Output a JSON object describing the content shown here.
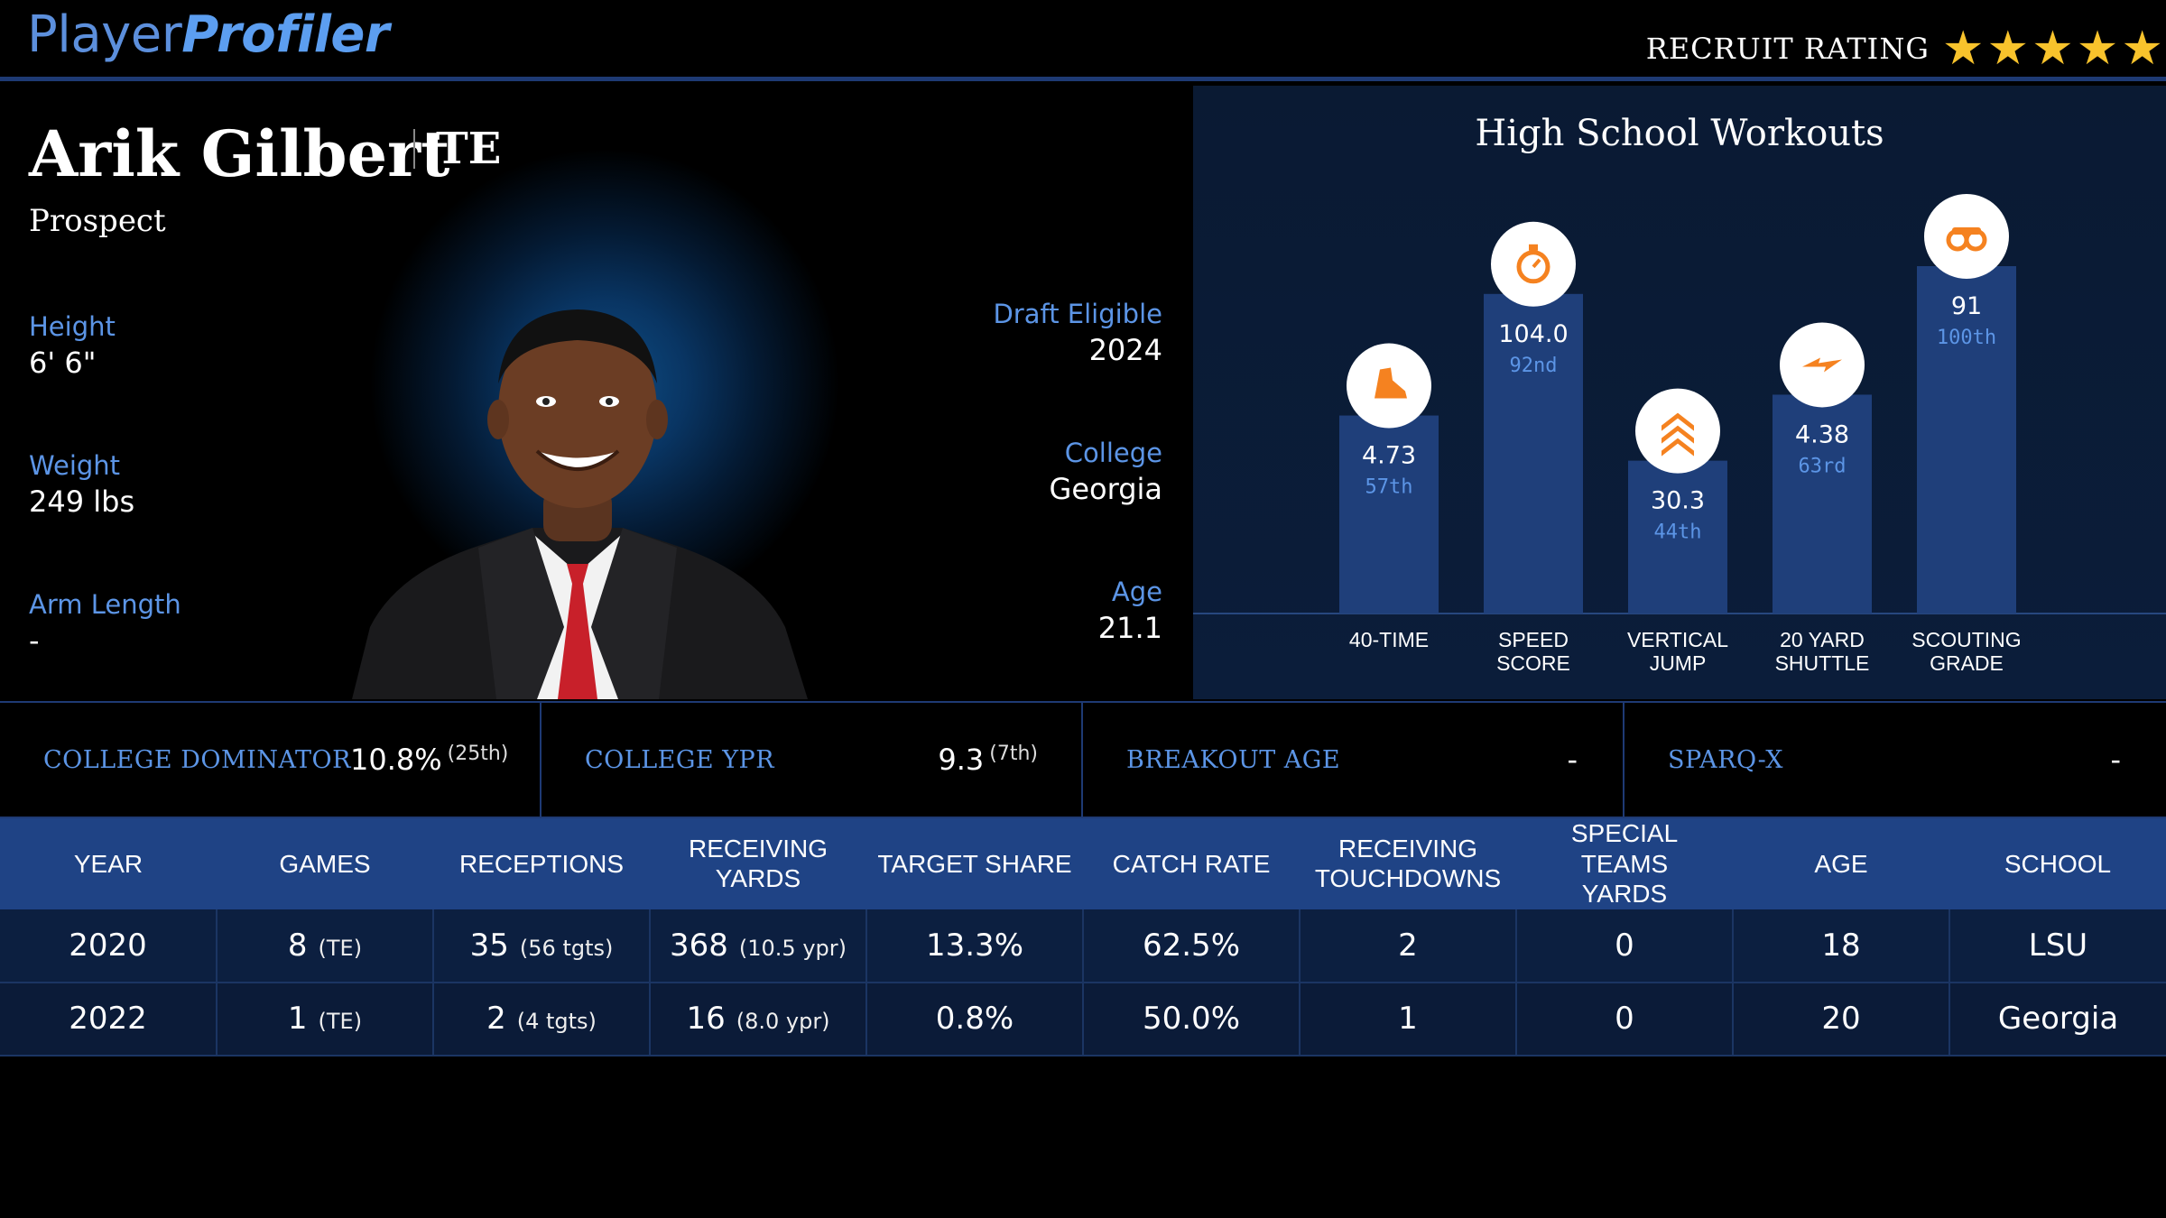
{
  "header": {
    "brand_part1": "Player",
    "brand_part2": "Profiler",
    "recruit_label": "RECRUIT RATING",
    "recruit_stars": 5
  },
  "player": {
    "name": "Arik Gilbert",
    "position": "TE",
    "status": "Prospect",
    "height_label": "Height",
    "height": "6' 6\"",
    "weight_label": "Weight",
    "weight": "249 lbs",
    "arm_label": "Arm Length",
    "arm": "-",
    "draft_label": "Draft Eligible",
    "draft": "2024",
    "college_label": "College",
    "college": "Georgia",
    "age_label": "Age",
    "age": "21.1"
  },
  "workouts": {
    "title": "High School Workouts",
    "items": [
      {
        "label_line1": "40-TIME",
        "label_line2": "",
        "value": "4.73",
        "rank": "57th",
        "percentile": 57,
        "icon": "shoe-icon"
      },
      {
        "label_line1": "SPEED",
        "label_line2": "SCORE",
        "value": "104.0",
        "rank": "92nd",
        "percentile": 92,
        "icon": "stopwatch-icon"
      },
      {
        "label_line1": "VERTICAL",
        "label_line2": "JUMP",
        "value": "30.3",
        "rank": "44th",
        "percentile": 44,
        "icon": "chevrons-up-icon"
      },
      {
        "label_line1": "20 YARD",
        "label_line2": "SHUTTLE",
        "value": "4.38",
        "rank": "63rd",
        "percentile": 63,
        "icon": "lightning-icon"
      },
      {
        "label_line1": "SCOUTING",
        "label_line2": "GRADE",
        "value": "91",
        "rank": "100th",
        "percentile": 100,
        "icon": "binoculars-icon"
      }
    ]
  },
  "metrics": [
    {
      "label": "COLLEGE DOMINATOR",
      "value": "10.8%",
      "rank": "(25th)"
    },
    {
      "label": "COLLEGE YPR",
      "value": "9.3",
      "rank": "(7th)"
    },
    {
      "label": "BREAKOUT AGE",
      "value": "-",
      "rank": ""
    },
    {
      "label": "SPARQ-X",
      "value": "-",
      "rank": ""
    }
  ],
  "table": {
    "headers": [
      "YEAR",
      "GAMES",
      "RECEPTIONS",
      "RECEIVING YARDS",
      "TARGET SHARE",
      "CATCH RATE",
      "RECEIVING\nTOUCHDOWNS",
      "SPECIAL TEAMS\nYARDS",
      "AGE",
      "SCHOOL"
    ],
    "rows": [
      {
        "year": "2020",
        "games": "8",
        "games_sub": "(TE)",
        "rec": "35",
        "rec_sub": "(56 tgts)",
        "yds": "368",
        "yds_sub": "(10.5 ypr)",
        "ts": "13.3%",
        "cr": "62.5%",
        "td": "2",
        "st": "0",
        "age": "18",
        "school": "LSU"
      },
      {
        "year": "2022",
        "games": "1",
        "games_sub": "(TE)",
        "rec": "2",
        "rec_sub": "(4 tgts)",
        "yds": "16",
        "yds_sub": "(8.0 ypr)",
        "ts": "0.8%",
        "cr": "50.0%",
        "td": "1",
        "st": "0",
        "age": "20",
        "school": "Georgia"
      }
    ]
  },
  "colors": {
    "accent": "#5c95e6",
    "bar": "#1f3f7a",
    "icon": "#f58220",
    "star": "#f8c32c"
  }
}
